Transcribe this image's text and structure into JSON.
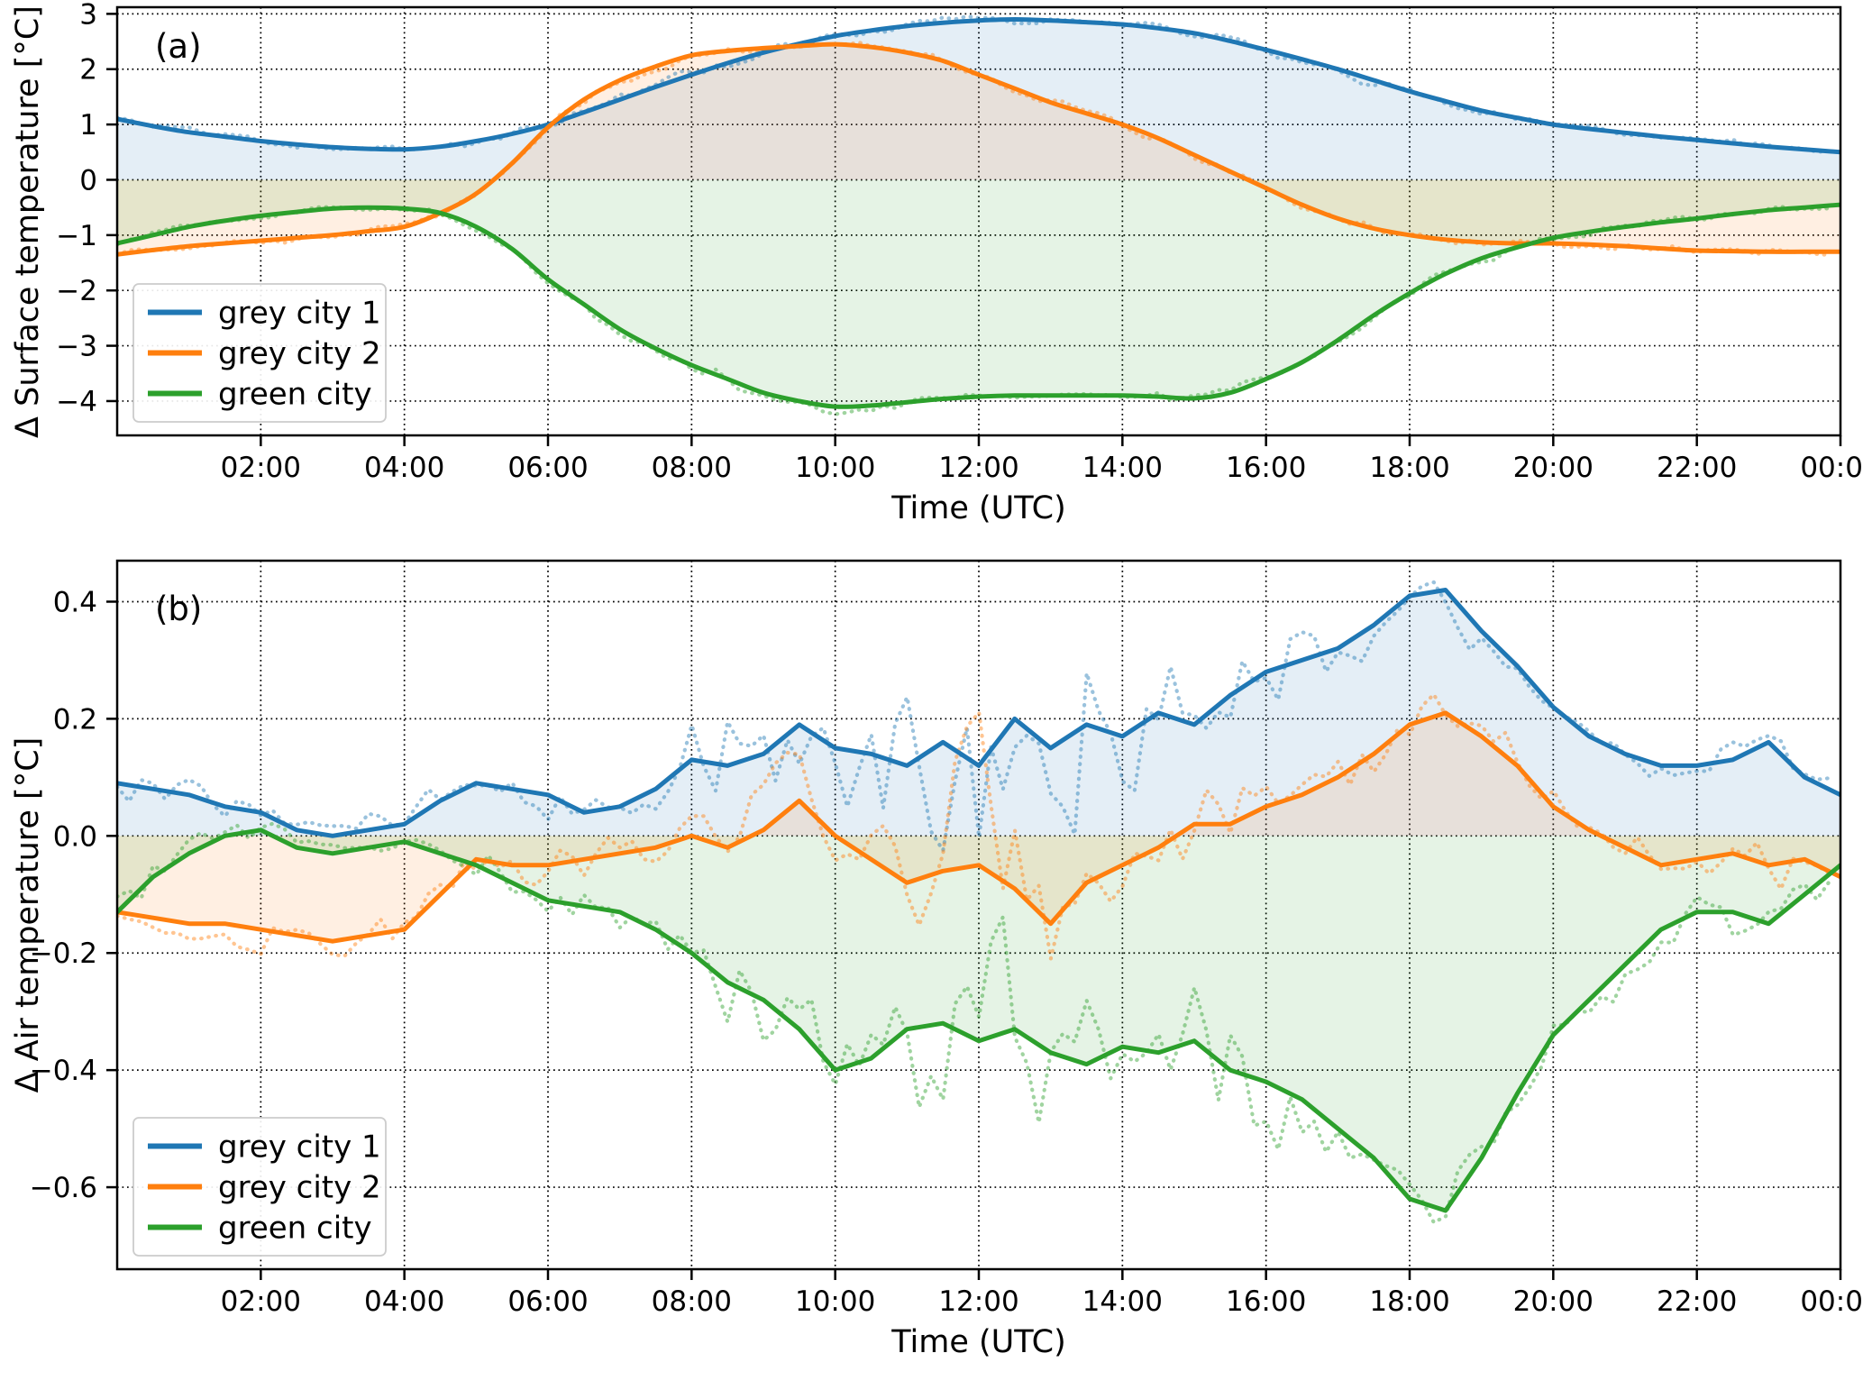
{
  "page": {
    "background_color": "#ffffff"
  },
  "chart_data": [
    {
      "type": "line",
      "panel_label": "(a)",
      "xlabel": "Time (UTC)",
      "ylabel": "Δ Surface temperature [°C]",
      "xlim": [
        0,
        24
      ],
      "ylim": [
        -4.62,
        3.12
      ],
      "x_step_hours": 0.5,
      "xticks": [
        2,
        4,
        6,
        8,
        10,
        12,
        14,
        16,
        18,
        20,
        22,
        24
      ],
      "xtick_labels": [
        "02:00",
        "04:00",
        "06:00",
        "08:00",
        "10:00",
        "12:00",
        "14:00",
        "16:00",
        "18:00",
        "20:00",
        "22:00",
        "00:00"
      ],
      "yticks": [
        3,
        2,
        1,
        0,
        -1,
        -2,
        -3,
        -4
      ],
      "ytick_labels": [
        "3",
        "2",
        "1",
        "0",
        "−1",
        "−2",
        "−3",
        "−4"
      ],
      "grid": true,
      "grid_style": "dotted",
      "smooth": true,
      "fill_to_zero": true,
      "fill_opacity": 0.12,
      "legend_position": "lower left",
      "legend": [
        "grey city 1",
        "grey city 2",
        "green city"
      ],
      "raw_overlay": {
        "style": "dotted",
        "resolution_hours": 0.1667,
        "opacity": 0.45
      },
      "series": [
        {
          "name": "grey city 1",
          "color": "#1f77b4",
          "values": [
            1.1,
            0.97,
            0.86,
            0.78,
            0.7,
            0.64,
            0.59,
            0.56,
            0.55,
            0.6,
            0.7,
            0.83,
            1.0,
            1.22,
            1.45,
            1.68,
            1.9,
            2.11,
            2.3,
            2.46,
            2.6,
            2.7,
            2.78,
            2.84,
            2.88,
            2.9,
            2.88,
            2.85,
            2.81,
            2.74,
            2.65,
            2.51,
            2.35,
            2.18,
            2.0,
            1.8,
            1.6,
            1.42,
            1.25,
            1.12,
            1.0,
            0.92,
            0.85,
            0.78,
            0.72,
            0.66,
            0.6,
            0.55,
            0.5
          ],
          "noise_amplitude": [
            0.05,
            0.05,
            0.05,
            0.05,
            0.05,
            0.06,
            0.07,
            0.07,
            0.07,
            0.07,
            0.06,
            0.06,
            0.06,
            0.06,
            0.06,
            0.06,
            0.07,
            0.08,
            0.07,
            0.06,
            0.05,
            0.05,
            0.05,
            0.05,
            0.05
          ]
        },
        {
          "name": "grey city 2",
          "color": "#ff7f0e",
          "values": [
            -1.35,
            -1.27,
            -1.2,
            -1.15,
            -1.1,
            -1.05,
            -1.0,
            -0.93,
            -0.85,
            -0.6,
            -0.25,
            0.3,
            0.95,
            1.45,
            1.8,
            2.05,
            2.25,
            2.33,
            2.38,
            2.42,
            2.45,
            2.4,
            2.3,
            2.15,
            1.9,
            1.65,
            1.4,
            1.2,
            1.0,
            0.75,
            0.45,
            0.15,
            -0.15,
            -0.45,
            -0.7,
            -0.88,
            -1.0,
            -1.08,
            -1.13,
            -1.15,
            -1.15,
            -1.17,
            -1.2,
            -1.24,
            -1.28,
            -1.29,
            -1.3,
            -1.3,
            -1.3
          ],
          "noise_amplitude": [
            0.05,
            0.05,
            0.05,
            0.05,
            0.05,
            0.06,
            0.07,
            0.07,
            0.07,
            0.07,
            0.06,
            0.06,
            0.06,
            0.06,
            0.06,
            0.06,
            0.07,
            0.08,
            0.07,
            0.06,
            0.05,
            0.05,
            0.05,
            0.05,
            0.05
          ]
        },
        {
          "name": "green city",
          "color": "#2ca02c",
          "values": [
            -1.15,
            -1.0,
            -0.85,
            -0.74,
            -0.65,
            -0.58,
            -0.52,
            -0.5,
            -0.52,
            -0.6,
            -0.85,
            -1.25,
            -1.8,
            -2.25,
            -2.7,
            -3.05,
            -3.35,
            -3.6,
            -3.85,
            -4.0,
            -4.1,
            -4.08,
            -4.02,
            -3.96,
            -3.92,
            -3.9,
            -3.9,
            -3.9,
            -3.9,
            -3.92,
            -3.95,
            -3.85,
            -3.6,
            -3.3,
            -2.9,
            -2.45,
            -2.05,
            -1.7,
            -1.42,
            -1.22,
            -1.05,
            -0.94,
            -0.85,
            -0.77,
            -0.7,
            -0.62,
            -0.55,
            -0.5,
            -0.45
          ],
          "noise_amplitude": [
            0.05,
            0.05,
            0.05,
            0.05,
            0.05,
            0.07,
            0.09,
            0.09,
            0.09,
            0.09,
            0.08,
            0.07,
            0.06,
            0.06,
            0.06,
            0.07,
            0.08,
            0.09,
            0.08,
            0.06,
            0.05,
            0.05,
            0.05,
            0.05,
            0.05
          ]
        }
      ]
    },
    {
      "type": "line",
      "panel_label": "(b)",
      "xlabel": "Time (UTC)",
      "ylabel": "Δ Air temperature [°C]",
      "xlim": [
        0,
        24
      ],
      "ylim": [
        -0.74,
        0.47
      ],
      "x_step_hours": 0.5,
      "xticks": [
        2,
        4,
        6,
        8,
        10,
        12,
        14,
        16,
        18,
        20,
        22,
        24
      ],
      "xtick_labels": [
        "02:00",
        "04:00",
        "06:00",
        "08:00",
        "10:00",
        "12:00",
        "14:00",
        "16:00",
        "18:00",
        "20:00",
        "22:00",
        "00:00"
      ],
      "yticks": [
        0.4,
        0.2,
        0.0,
        -0.2,
        -0.4,
        -0.6
      ],
      "ytick_labels": [
        "0.4",
        "0.2",
        "0.0",
        "−0.2",
        "−0.4",
        "−0.6"
      ],
      "grid": true,
      "grid_style": "dotted",
      "smooth": false,
      "fill_to_zero": true,
      "fill_opacity": 0.12,
      "legend_position": "lower left",
      "legend": [
        "grey city 1",
        "grey city 2",
        "green city"
      ],
      "raw_overlay": {
        "style": "dotted",
        "resolution_hours": 0.1667,
        "opacity": 0.45
      },
      "series": [
        {
          "name": "grey city 1",
          "color": "#1f77b4",
          "values": [
            0.09,
            0.08,
            0.07,
            0.05,
            0.04,
            0.01,
            0.0,
            0.01,
            0.02,
            0.06,
            0.09,
            0.08,
            0.07,
            0.04,
            0.05,
            0.08,
            0.13,
            0.12,
            0.14,
            0.19,
            0.15,
            0.14,
            0.12,
            0.16,
            0.12,
            0.2,
            0.15,
            0.19,
            0.17,
            0.21,
            0.19,
            0.24,
            0.28,
            0.3,
            0.32,
            0.36,
            0.41,
            0.42,
            0.35,
            0.29,
            0.22,
            0.17,
            0.14,
            0.12,
            0.12,
            0.13,
            0.16,
            0.1,
            0.07
          ],
          "noise_amplitude": [
            0.02,
            0.02,
            0.02,
            0.02,
            0.02,
            0.02,
            0.03,
            0.04,
            0.06,
            0.09,
            0.1,
            0.09,
            0.16,
            0.15,
            0.1,
            0.09,
            0.06,
            0.04,
            0.03,
            0.03,
            0.03,
            0.02,
            0.03,
            0.03,
            0.02
          ]
        },
        {
          "name": "grey city 2",
          "color": "#ff7f0e",
          "values": [
            -0.13,
            -0.14,
            -0.15,
            -0.15,
            -0.16,
            -0.17,
            -0.18,
            -0.17,
            -0.16,
            -0.1,
            -0.04,
            -0.05,
            -0.05,
            -0.04,
            -0.03,
            -0.02,
            0.0,
            -0.02,
            0.01,
            0.06,
            0.0,
            -0.04,
            -0.08,
            -0.06,
            -0.05,
            -0.09,
            -0.15,
            -0.08,
            -0.05,
            -0.02,
            0.02,
            0.02,
            0.05,
            0.07,
            0.1,
            0.14,
            0.19,
            0.21,
            0.17,
            0.12,
            0.05,
            0.01,
            -0.02,
            -0.05,
            -0.04,
            -0.03,
            -0.05,
            -0.04,
            -0.07
          ],
          "noise_amplitude": [
            0.02,
            0.02,
            0.02,
            0.02,
            0.02,
            0.03,
            0.03,
            0.03,
            0.04,
            0.05,
            0.06,
            0.11,
            0.14,
            0.08,
            0.06,
            0.06,
            0.04,
            0.04,
            0.04,
            0.03,
            0.03,
            0.03,
            0.03,
            0.03,
            0.02
          ]
        },
        {
          "name": "green city",
          "color": "#2ca02c",
          "values": [
            -0.13,
            -0.07,
            -0.03,
            0.0,
            0.01,
            -0.02,
            -0.03,
            -0.02,
            -0.01,
            -0.03,
            -0.05,
            -0.08,
            -0.11,
            -0.12,
            -0.13,
            -0.16,
            -0.2,
            -0.25,
            -0.28,
            -0.33,
            -0.4,
            -0.38,
            -0.33,
            -0.32,
            -0.35,
            -0.33,
            -0.37,
            -0.39,
            -0.36,
            -0.37,
            -0.35,
            -0.4,
            -0.42,
            -0.45,
            -0.5,
            -0.55,
            -0.62,
            -0.64,
            -0.55,
            -0.44,
            -0.34,
            -0.28,
            -0.22,
            -0.16,
            -0.13,
            -0.13,
            -0.15,
            -0.1,
            -0.05
          ],
          "noise_amplitude": [
            0.02,
            0.02,
            0.02,
            0.02,
            0.02,
            0.03,
            0.03,
            0.04,
            0.05,
            0.08,
            0.1,
            0.09,
            0.18,
            0.12,
            0.1,
            0.1,
            0.08,
            0.05,
            0.04,
            0.04,
            0.04,
            0.03,
            0.03,
            0.04,
            0.02
          ]
        }
      ]
    }
  ]
}
